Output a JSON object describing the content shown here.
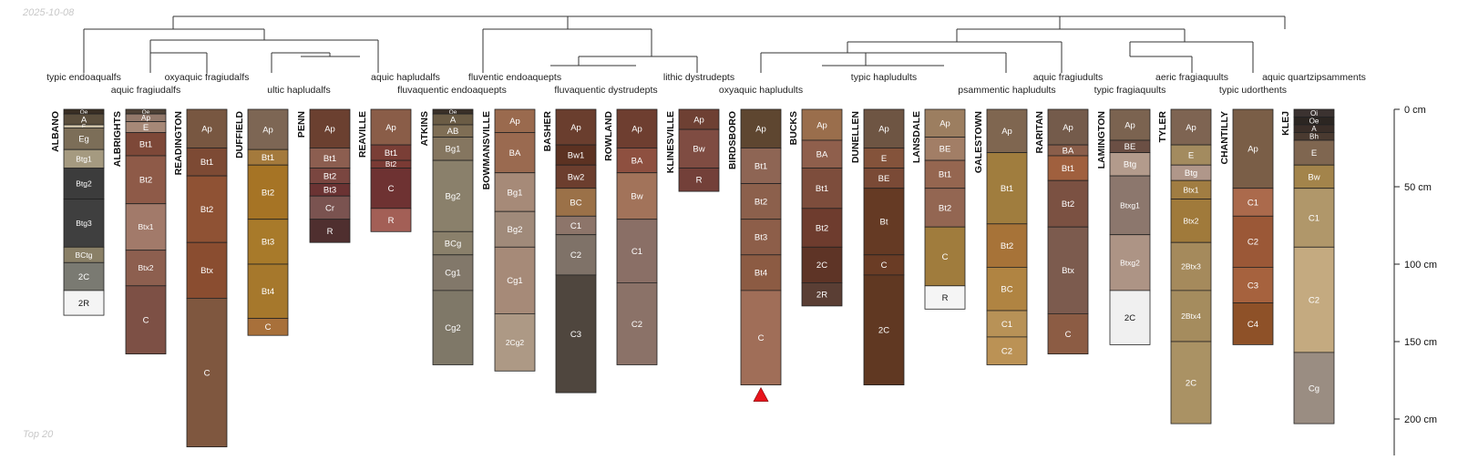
{
  "header": {
    "date_label": "2025-10-08"
  },
  "footer": {
    "caption": "Top 20"
  },
  "taxa": [
    "typic endoaqualfs",
    "aquic fragiudalfs",
    "oxyaquic fragiudalfs",
    "ultic hapludalfs",
    "aquic hapludalfs",
    "fluvaquentic endoaquepts",
    "fluventic endoaquepts",
    "fluvaquentic dystrudepts",
    "lithic dystrudepts",
    "oxyaquic hapludults",
    "typic hapludults",
    "psammentic hapludults",
    "aquic fragiudults",
    "typic fragiaquults",
    "aeric fragiaquults",
    "typic udorthents",
    "aquic quartzipsamments"
  ],
  "depth_axis": {
    "unit": "cm",
    "ticks": [
      0,
      50,
      100,
      150,
      200
    ],
    "tick_labels": [
      "0 cm",
      "50 cm",
      "100 cm",
      "150 cm",
      "200 cm"
    ]
  },
  "marker": {
    "profile": "BIRDSBORO",
    "color": "#e8141c",
    "description": "red-triangle-icon"
  },
  "profiles": [
    {
      "name": "ALBANO",
      "horizons": [
        {
          "name": "Oe",
          "top": 0,
          "bottom": 3,
          "color": "#3a2f24"
        },
        {
          "name": "A",
          "top": 3,
          "bottom": 10,
          "color": "#5c4f3d"
        },
        {
          "name": "E",
          "top": 10,
          "bottom": 12,
          "color": "#cfc2a8"
        },
        {
          "name": "Eg",
          "top": 12,
          "bottom": 26,
          "color": "#7c6e58"
        },
        {
          "name": "Btg1",
          "top": 26,
          "bottom": 38,
          "color": "#a59a80"
        },
        {
          "name": "Btg2",
          "top": 38,
          "bottom": 58,
          "color": "#3c3c3c"
        },
        {
          "name": "Btg3",
          "top": 58,
          "bottom": 89,
          "color": "#3f3f3f"
        },
        {
          "name": "BCtg",
          "top": 89,
          "bottom": 99,
          "color": "#8a8067"
        },
        {
          "name": "2C",
          "top": 99,
          "bottom": 117,
          "color": "#7a7a72"
        },
        {
          "name": "2R",
          "top": 117,
          "bottom": 133,
          "color": "#f4f4f4"
        }
      ]
    },
    {
      "name": "ALBRIGHTS",
      "horizons": [
        {
          "name": "Oe",
          "top": 0,
          "bottom": 3,
          "color": "#4f4236"
        },
        {
          "name": "Ap",
          "top": 3,
          "bottom": 8,
          "color": "#93796b"
        },
        {
          "name": "E",
          "top": 8,
          "bottom": 15,
          "color": "#a68877"
        },
        {
          "name": "Bt1",
          "top": 15,
          "bottom": 30,
          "color": "#7d4838"
        },
        {
          "name": "Bt2",
          "top": 30,
          "bottom": 61,
          "color": "#8e5a48"
        },
        {
          "name": "Btx1",
          "top": 61,
          "bottom": 91,
          "color": "#a27a6a"
        },
        {
          "name": "Btx2",
          "top": 91,
          "bottom": 114,
          "color": "#8d5f4f"
        },
        {
          "name": "C",
          "top": 114,
          "bottom": 158,
          "color": "#7d5045"
        }
      ]
    },
    {
      "name": "READINGTON",
      "horizons": [
        {
          "name": "Ap",
          "top": 0,
          "bottom": 25,
          "color": "#785741"
        },
        {
          "name": "Bt1",
          "top": 25,
          "bottom": 43,
          "color": "#7d4a34"
        },
        {
          "name": "Bt2",
          "top": 43,
          "bottom": 86,
          "color": "#8f5234"
        },
        {
          "name": "Btx",
          "top": 86,
          "bottom": 122,
          "color": "#8a4d30"
        },
        {
          "name": "C",
          "top": 122,
          "bottom": 218,
          "color": "#7f573f"
        }
      ]
    },
    {
      "name": "DUFFIELD",
      "horizons": [
        {
          "name": "Ap",
          "top": 0,
          "bottom": 26,
          "color": "#7d6654"
        },
        {
          "name": "Bt1",
          "top": 26,
          "bottom": 36,
          "color": "#a47a3c"
        },
        {
          "name": "Bt2",
          "top": 36,
          "bottom": 71,
          "color": "#a67425"
        },
        {
          "name": "Bt3",
          "top": 71,
          "bottom": 100,
          "color": "#a87a2a"
        },
        {
          "name": "Bt4",
          "top": 100,
          "bottom": 135,
          "color": "#a6782c"
        },
        {
          "name": "C",
          "top": 135,
          "bottom": 146,
          "color": "#a8703a"
        }
      ]
    },
    {
      "name": "PENN",
      "horizons": [
        {
          "name": "Ap",
          "top": 0,
          "bottom": 25,
          "color": "#6b4030"
        },
        {
          "name": "Bt1",
          "top": 25,
          "bottom": 38,
          "color": "#8c5e50"
        },
        {
          "name": "Bt2",
          "top": 38,
          "bottom": 48,
          "color": "#7a4640"
        },
        {
          "name": "Bt3",
          "top": 48,
          "bottom": 56,
          "color": "#6b3333"
        },
        {
          "name": "Cr",
          "top": 56,
          "bottom": 71,
          "color": "#7a5350"
        },
        {
          "name": "R",
          "top": 71,
          "bottom": 86,
          "color": "#4f2f2f"
        }
      ]
    },
    {
      "name": "REAVILLE",
      "horizons": [
        {
          "name": "Ap",
          "top": 0,
          "bottom": 23,
          "color": "#8a5d48"
        },
        {
          "name": "Bt1",
          "top": 23,
          "bottom": 33,
          "color": "#7a3e36"
        },
        {
          "name": "Bt2",
          "top": 33,
          "bottom": 38,
          "color": "#7a3a34"
        },
        {
          "name": "C",
          "top": 38,
          "bottom": 64,
          "color": "#6e3232"
        },
        {
          "name": "R",
          "top": 64,
          "bottom": 79,
          "color": "#a35f56"
        }
      ]
    },
    {
      "name": "ATKINS",
      "horizons": [
        {
          "name": "Oe",
          "top": 0,
          "bottom": 3,
          "color": "#3a3028"
        },
        {
          "name": "A",
          "top": 3,
          "bottom": 10,
          "color": "#6b5c45"
        },
        {
          "name": "AB",
          "top": 10,
          "bottom": 18,
          "color": "#7f6e55"
        },
        {
          "name": "Bg1",
          "top": 18,
          "bottom": 33,
          "color": "#857660"
        },
        {
          "name": "Bg2",
          "top": 33,
          "bottom": 79,
          "color": "#8a806b"
        },
        {
          "name": "BCg",
          "top": 79,
          "bottom": 94,
          "color": "#8a806b"
        },
        {
          "name": "Cg1",
          "top": 94,
          "bottom": 117,
          "color": "#82786a"
        },
        {
          "name": "Cg2",
          "top": 117,
          "bottom": 165,
          "color": "#7f7868"
        }
      ]
    },
    {
      "name": "BOWMANSVILLE",
      "horizons": [
        {
          "name": "Ap",
          "top": 0,
          "bottom": 15,
          "color": "#9a6a4e"
        },
        {
          "name": "BA",
          "top": 15,
          "bottom": 41,
          "color": "#9a6a50"
        },
        {
          "name": "Bg1",
          "top": 41,
          "bottom": 66,
          "color": "#a68a78"
        },
        {
          "name": "Bg2",
          "top": 66,
          "bottom": 89,
          "color": "#a08a7a"
        },
        {
          "name": "Cg1",
          "top": 89,
          "bottom": 132,
          "color": "#a68a78"
        },
        {
          "name": "2Cg2",
          "top": 132,
          "bottom": 169,
          "color": "#ad9985"
        }
      ]
    },
    {
      "name": "BASHER",
      "horizons": [
        {
          "name": "Ap",
          "top": 0,
          "bottom": 23,
          "color": "#6a3e2e"
        },
        {
          "name": "Bw1",
          "top": 23,
          "bottom": 36,
          "color": "#5c3222"
        },
        {
          "name": "Bw2",
          "top": 36,
          "bottom": 51,
          "color": "#6c3e2e"
        },
        {
          "name": "BC",
          "top": 51,
          "bottom": 69,
          "color": "#9b7148"
        },
        {
          "name": "C1",
          "top": 69,
          "bottom": 81,
          "color": "#8d756a"
        },
        {
          "name": "C2",
          "top": 81,
          "bottom": 107,
          "color": "#7f7268"
        },
        {
          "name": "C3",
          "top": 107,
          "bottom": 183,
          "color": "#4f463e"
        }
      ]
    },
    {
      "name": "ROWLAND",
      "horizons": [
        {
          "name": "Ap",
          "top": 0,
          "bottom": 25,
          "color": "#6e3e30"
        },
        {
          "name": "BA",
          "top": 25,
          "bottom": 41,
          "color": "#8e5040"
        },
        {
          "name": "Bw",
          "top": 41,
          "bottom": 71,
          "color": "#a2735a"
        },
        {
          "name": "C1",
          "top": 71,
          "bottom": 112,
          "color": "#8a6f66"
        },
        {
          "name": "C2",
          "top": 112,
          "bottom": 165,
          "color": "#8b7268"
        }
      ]
    },
    {
      "name": "KLINESVILLE",
      "horizons": [
        {
          "name": "Ap",
          "top": 0,
          "bottom": 13,
          "color": "#6e4033"
        },
        {
          "name": "Bw",
          "top": 13,
          "bottom": 38,
          "color": "#7f4c42"
        },
        {
          "name": "R",
          "top": 38,
          "bottom": 53,
          "color": "#734039"
        }
      ]
    },
    {
      "name": "BIRDSBORO",
      "horizons": [
        {
          "name": "Ap",
          "top": 0,
          "bottom": 25,
          "color": "#5e4630"
        },
        {
          "name": "Bt1",
          "top": 25,
          "bottom": 48,
          "color": "#8e6554"
        },
        {
          "name": "Bt2",
          "top": 48,
          "bottom": 71,
          "color": "#8c604c"
        },
        {
          "name": "Bt3",
          "top": 71,
          "bottom": 94,
          "color": "#8d5e49"
        },
        {
          "name": "Bt4",
          "top": 94,
          "bottom": 117,
          "color": "#8c5b43"
        },
        {
          "name": "C",
          "top": 117,
          "bottom": 178,
          "color": "#a06e58"
        }
      ]
    },
    {
      "name": "BUCKS",
      "horizons": [
        {
          "name": "Ap",
          "top": 0,
          "bottom": 20,
          "color": "#9a6e4c"
        },
        {
          "name": "BA",
          "top": 20,
          "bottom": 38,
          "color": "#8f5f4c"
        },
        {
          "name": "Bt1",
          "top": 38,
          "bottom": 64,
          "color": "#7d4d3c"
        },
        {
          "name": "Bt2",
          "top": 64,
          "bottom": 89,
          "color": "#6e3c2e"
        },
        {
          "name": "2C",
          "top": 89,
          "bottom": 112,
          "color": "#5e3426"
        },
        {
          "name": "2R",
          "top": 112,
          "bottom": 127,
          "color": "#5a3e34"
        }
      ]
    },
    {
      "name": "DUNELLEN",
      "horizons": [
        {
          "name": "Ap",
          "top": 0,
          "bottom": 25,
          "color": "#6e5543"
        },
        {
          "name": "E",
          "top": 25,
          "bottom": 38,
          "color": "#84533b"
        },
        {
          "name": "BE",
          "top": 38,
          "bottom": 51,
          "color": "#7a4a36"
        },
        {
          "name": "Bt",
          "top": 51,
          "bottom": 94,
          "color": "#653a24"
        },
        {
          "name": "C",
          "top": 94,
          "bottom": 107,
          "color": "#6a3c25"
        },
        {
          "name": "2C",
          "top": 107,
          "bottom": 178,
          "color": "#603822"
        }
      ]
    },
    {
      "name": "LANSDALE",
      "horizons": [
        {
          "name": "Ap",
          "top": 0,
          "bottom": 18,
          "color": "#9c7e60"
        },
        {
          "name": "BE",
          "top": 18,
          "bottom": 33,
          "color": "#a27e66"
        },
        {
          "name": "Bt1",
          "top": 33,
          "bottom": 51,
          "color": "#956650"
        },
        {
          "name": "Bt2",
          "top": 51,
          "bottom": 76,
          "color": "#936652"
        },
        {
          "name": "C",
          "top": 76,
          "bottom": 114,
          "color": "#a07c3d"
        },
        {
          "name": "R",
          "top": 114,
          "bottom": 129,
          "color": "#f5f5f5"
        }
      ]
    },
    {
      "name": "GALESTOWN",
      "horizons": [
        {
          "name": "Ap",
          "top": 0,
          "bottom": 28,
          "color": "#7f6650"
        },
        {
          "name": "Bt1",
          "top": 28,
          "bottom": 74,
          "color": "#a07d3e"
        },
        {
          "name": "Bt2",
          "top": 74,
          "bottom": 102,
          "color": "#a77338"
        },
        {
          "name": "BC",
          "top": 102,
          "bottom": 130,
          "color": "#b08442"
        },
        {
          "name": "C1",
          "top": 130,
          "bottom": 147,
          "color": "#b89257"
        },
        {
          "name": "C2",
          "top": 147,
          "bottom": 165,
          "color": "#bb9255"
        }
      ]
    },
    {
      "name": "RARITAN",
      "horizons": [
        {
          "name": "Ap",
          "top": 0,
          "bottom": 23,
          "color": "#745b4b"
        },
        {
          "name": "BA",
          "top": 23,
          "bottom": 30,
          "color": "#8a5e4a"
        },
        {
          "name": "Bt1",
          "top": 30,
          "bottom": 46,
          "color": "#a0603e"
        },
        {
          "name": "Bt2",
          "top": 46,
          "bottom": 76,
          "color": "#7b5142"
        },
        {
          "name": "Btx",
          "top": 76,
          "bottom": 132,
          "color": "#7c5b4e"
        },
        {
          "name": "C",
          "top": 132,
          "bottom": 158,
          "color": "#8c5c44"
        }
      ]
    },
    {
      "name": "LAMINGTON",
      "horizons": [
        {
          "name": "Ap",
          "top": 0,
          "bottom": 20,
          "color": "#7b6350"
        },
        {
          "name": "BE",
          "top": 20,
          "bottom": 28,
          "color": "#6b4f44"
        },
        {
          "name": "Btg",
          "top": 28,
          "bottom": 43,
          "color": "#b39b8c"
        },
        {
          "name": "Btxg1",
          "top": 43,
          "bottom": 81,
          "color": "#8c776d"
        },
        {
          "name": "Btxg2",
          "top": 81,
          "bottom": 117,
          "color": "#ad9485"
        },
        {
          "name": "2C",
          "top": 117,
          "bottom": 152,
          "color": "#f0f0f0"
        }
      ]
    },
    {
      "name": "TYLER",
      "horizons": [
        {
          "name": "Ap",
          "top": 0,
          "bottom": 23,
          "color": "#7e6452"
        },
        {
          "name": "E",
          "top": 23,
          "bottom": 36,
          "color": "#a38b5f"
        },
        {
          "name": "Btg",
          "top": 36,
          "bottom": 46,
          "color": "#b0978a"
        },
        {
          "name": "Btx1",
          "top": 46,
          "bottom": 58,
          "color": "#a17d42"
        },
        {
          "name": "Btx2",
          "top": 58,
          "bottom": 86,
          "color": "#a07a3b"
        },
        {
          "name": "2Btx3",
          "top": 86,
          "bottom": 117,
          "color": "#a58a5c"
        },
        {
          "name": "2Btx4",
          "top": 117,
          "bottom": 150,
          "color": "#a58c5e"
        },
        {
          "name": "2C",
          "top": 150,
          "bottom": 203,
          "color": "#aa9264"
        }
      ]
    },
    {
      "name": "CHANTILLY",
      "horizons": [
        {
          "name": "Ap",
          "top": 0,
          "bottom": 51,
          "color": "#7a5e47"
        },
        {
          "name": "C1",
          "top": 51,
          "bottom": 69,
          "color": "#ab6a4c"
        },
        {
          "name": "C2",
          "top": 69,
          "bottom": 102,
          "color": "#9b5837"
        },
        {
          "name": "C3",
          "top": 102,
          "bottom": 125,
          "color": "#a6623e"
        },
        {
          "name": "C4",
          "top": 125,
          "bottom": 152,
          "color": "#8e5128"
        }
      ]
    },
    {
      "name": "KLEJ",
      "horizons": [
        {
          "name": "Oi",
          "top": 0,
          "bottom": 5,
          "color": "#3b3230"
        },
        {
          "name": "Oe",
          "top": 5,
          "bottom": 10,
          "color": "#2c2622"
        },
        {
          "name": "A",
          "top": 10,
          "bottom": 15,
          "color": "#3a2e28"
        },
        {
          "name": "Bh",
          "top": 15,
          "bottom": 20,
          "color": "#4a3a30"
        },
        {
          "name": "E",
          "top": 20,
          "bottom": 36,
          "color": "#7f6650"
        },
        {
          "name": "Bw",
          "top": 36,
          "bottom": 51,
          "color": "#a3844b"
        },
        {
          "name": "C1",
          "top": 51,
          "bottom": 89,
          "color": "#b0976a"
        },
        {
          "name": "C2",
          "top": 89,
          "bottom": 157,
          "color": "#c4aa80"
        },
        {
          "name": "Cg",
          "top": 157,
          "bottom": 203,
          "color": "#9a8d82"
        }
      ]
    }
  ]
}
